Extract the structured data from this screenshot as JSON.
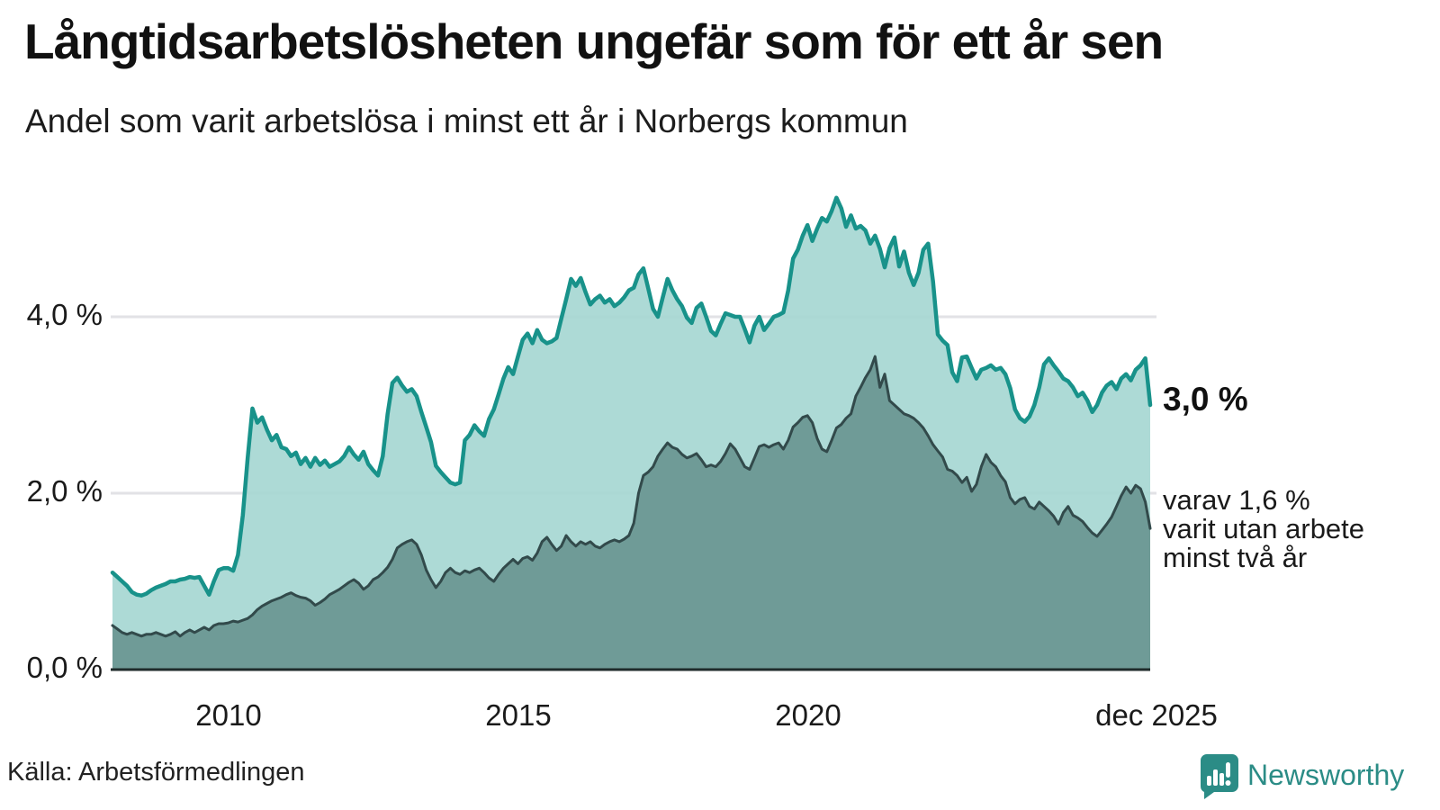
{
  "header": {
    "title": "Långtidsarbetslösheten ungefär som för ett år sen",
    "subtitle": "Andel som varit arbetslösa i minst ett år i Norbergs kommun"
  },
  "chart_data": {
    "type": "area",
    "title": "Långtidsarbetslösheten ungefär som för ett år sen",
    "subtitle": "Andel som varit arbetslösa i minst ett år i Norbergs kommun",
    "unit": "%",
    "frequency": "monthly",
    "x_start": "2008-01",
    "x_end": "2025-12",
    "x_tick_labels": [
      "2010",
      "2015",
      "2020",
      "dec 2025"
    ],
    "x_tick_month_index": [
      24,
      84,
      144,
      215
    ],
    "y_ticks": [
      {
        "value": 0,
        "label": "0,0 %"
      },
      {
        "value": 2,
        "label": "2,0 %"
      },
      {
        "value": 4,
        "label": "4,0 %"
      }
    ],
    "ylim": [
      0,
      5.6
    ],
    "grid": "horizontal",
    "grid_color": "#e2e2e6",
    "baseline_color": "#1f2b2b",
    "series": [
      {
        "name": "Andel arbetslösa minst ett år",
        "color": "#18928a",
        "fill": "#a6d7d2",
        "end_value": 3.0,
        "end_label": "3,0 %",
        "values": [
          1.1,
          1.05,
          1.0,
          0.95,
          0.88,
          0.85,
          0.84,
          0.86,
          0.9,
          0.93,
          0.95,
          0.97,
          1.0,
          1.0,
          1.02,
          1.03,
          1.05,
          1.04,
          1.05,
          0.95,
          0.85,
          1.0,
          1.13,
          1.15,
          1.15,
          1.12,
          1.3,
          1.75,
          2.4,
          2.96,
          2.8,
          2.86,
          2.72,
          2.6,
          2.66,
          2.52,
          2.5,
          2.42,
          2.46,
          2.33,
          2.4,
          2.3,
          2.4,
          2.32,
          2.37,
          2.3,
          2.33,
          2.36,
          2.42,
          2.52,
          2.44,
          2.38,
          2.47,
          2.33,
          2.26,
          2.2,
          2.42,
          2.9,
          3.25,
          3.31,
          3.22,
          3.15,
          3.18,
          3.1,
          2.92,
          2.75,
          2.58,
          2.31,
          2.24,
          2.18,
          2.12,
          2.1,
          2.12,
          2.6,
          2.66,
          2.77,
          2.7,
          2.65,
          2.84,
          2.95,
          3.12,
          3.3,
          3.43,
          3.35,
          3.55,
          3.74,
          3.81,
          3.7,
          3.85,
          3.74,
          3.7,
          3.72,
          3.76,
          3.98,
          4.2,
          4.43,
          4.35,
          4.44,
          4.28,
          4.14,
          4.2,
          4.24,
          4.16,
          4.2,
          4.12,
          4.16,
          4.22,
          4.3,
          4.33,
          4.48,
          4.55,
          4.32,
          4.09,
          4.0,
          4.22,
          4.43,
          4.3,
          4.2,
          4.12,
          3.99,
          3.93,
          4.1,
          4.15,
          4.0,
          3.84,
          3.79,
          3.92,
          4.04,
          4.02,
          4.0,
          4.0,
          3.86,
          3.71,
          3.9,
          4.0,
          3.85,
          3.92,
          4.0,
          4.02,
          4.05,
          4.3,
          4.66,
          4.76,
          4.92,
          5.04,
          4.86,
          5.0,
          5.12,
          5.08,
          5.2,
          5.35,
          5.23,
          5.02,
          5.15,
          5.0,
          5.03,
          4.98,
          4.83,
          4.92,
          4.77,
          4.56,
          4.78,
          4.9,
          4.57,
          4.74,
          4.5,
          4.36,
          4.5,
          4.76,
          4.83,
          4.4,
          3.8,
          3.73,
          3.68,
          3.37,
          3.27,
          3.54,
          3.55,
          3.42,
          3.3,
          3.4,
          3.42,
          3.45,
          3.4,
          3.42,
          3.35,
          3.19,
          2.95,
          2.85,
          2.81,
          2.87,
          3.0,
          3.2,
          3.46,
          3.53,
          3.45,
          3.38,
          3.3,
          3.27,
          3.2,
          3.1,
          3.14,
          3.05,
          2.92,
          3.0,
          3.14,
          3.22,
          3.26,
          3.18,
          3.3,
          3.35,
          3.28,
          3.4,
          3.45,
          3.53,
          3.0
        ]
      },
      {
        "name": "Andel arbetslösa minst två år",
        "color": "#324a4b",
        "fill": "#6f9b97",
        "end_value": 1.6,
        "end_label": "varav 1,6 % varit utan arbete minst två år",
        "values": [
          0.5,
          0.46,
          0.42,
          0.4,
          0.42,
          0.4,
          0.38,
          0.4,
          0.4,
          0.42,
          0.4,
          0.38,
          0.4,
          0.43,
          0.38,
          0.42,
          0.45,
          0.42,
          0.45,
          0.48,
          0.45,
          0.5,
          0.52,
          0.52,
          0.53,
          0.55,
          0.54,
          0.56,
          0.58,
          0.62,
          0.68,
          0.72,
          0.75,
          0.78,
          0.8,
          0.82,
          0.85,
          0.87,
          0.84,
          0.82,
          0.81,
          0.78,
          0.73,
          0.76,
          0.8,
          0.85,
          0.88,
          0.91,
          0.95,
          0.99,
          1.02,
          0.98,
          0.91,
          0.95,
          1.02,
          1.05,
          1.1,
          1.16,
          1.25,
          1.38,
          1.42,
          1.45,
          1.47,
          1.42,
          1.3,
          1.13,
          1.02,
          0.93,
          1.0,
          1.1,
          1.15,
          1.1,
          1.08,
          1.12,
          1.1,
          1.13,
          1.15,
          1.1,
          1.04,
          1.0,
          1.08,
          1.15,
          1.2,
          1.25,
          1.2,
          1.26,
          1.28,
          1.24,
          1.32,
          1.45,
          1.5,
          1.42,
          1.35,
          1.4,
          1.52,
          1.45,
          1.4,
          1.45,
          1.42,
          1.45,
          1.4,
          1.38,
          1.42,
          1.45,
          1.47,
          1.45,
          1.48,
          1.52,
          1.66,
          2.0,
          2.2,
          2.24,
          2.3,
          2.42,
          2.5,
          2.57,
          2.52,
          2.5,
          2.44,
          2.4,
          2.42,
          2.45,
          2.38,
          2.3,
          2.32,
          2.3,
          2.36,
          2.45,
          2.56,
          2.5,
          2.4,
          2.3,
          2.27,
          2.4,
          2.53,
          2.55,
          2.52,
          2.55,
          2.57,
          2.5,
          2.6,
          2.75,
          2.8,
          2.86,
          2.88,
          2.8,
          2.62,
          2.5,
          2.47,
          2.6,
          2.74,
          2.78,
          2.85,
          2.9,
          3.1,
          3.2,
          3.31,
          3.4,
          3.55,
          3.2,
          3.35,
          3.05,
          3.0,
          2.95,
          2.9,
          2.88,
          2.85,
          2.8,
          2.74,
          2.65,
          2.55,
          2.48,
          2.41,
          2.27,
          2.25,
          2.2,
          2.12,
          2.18,
          2.02,
          2.1,
          2.3,
          2.44,
          2.35,
          2.3,
          2.2,
          2.13,
          1.95,
          1.88,
          1.93,
          1.95,
          1.85,
          1.82,
          1.9,
          1.85,
          1.8,
          1.74,
          1.65,
          1.78,
          1.85,
          1.75,
          1.72,
          1.68,
          1.61,
          1.55,
          1.51,
          1.58,
          1.65,
          1.73,
          1.85,
          1.97,
          2.07,
          2.0,
          2.09,
          2.05,
          1.9,
          1.6
        ]
      }
    ]
  },
  "annotations": {
    "end_value_primary": "3,0 %",
    "end_note_lines": [
      "varav 1,6 %",
      "varit utan arbete",
      "minst två år"
    ]
  },
  "footer": {
    "source": "Källa: Arbetsförmedlingen",
    "brand": "Newsworthy",
    "brand_color": "#2b8c86"
  }
}
